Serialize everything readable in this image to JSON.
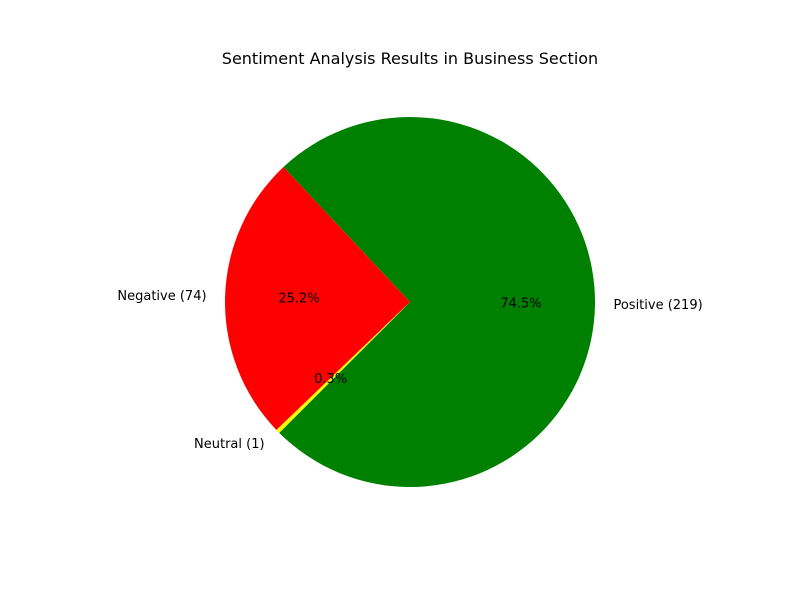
{
  "chart_data": {
    "type": "pie",
    "title": "Sentiment Analysis Results in Business Section",
    "slices": [
      {
        "label": "Positive (219)",
        "value": 219,
        "pct_label": "74.5%",
        "color": "#008000"
      },
      {
        "label": "Negative (74)",
        "value": 74,
        "pct_label": "25.2%",
        "color": "#ff0000"
      },
      {
        "label": "Neutral (1)",
        "value": 1,
        "pct_label": "0.3%",
        "color": "#ffff00"
      }
    ],
    "start_angle_deg": 225,
    "legend": "none"
  }
}
